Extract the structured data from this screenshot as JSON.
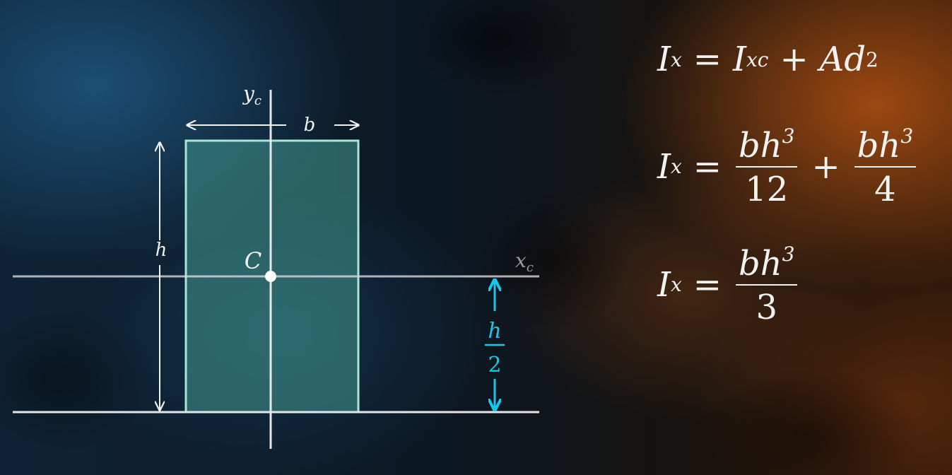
{
  "colors": {
    "rect_fill": "#3e8c86",
    "rect_stroke": "#a8e6d6",
    "axis": "#d8d8d8",
    "accent": "#18c8ec",
    "text": "#f2f2f2"
  },
  "diagram": {
    "width_label": "b",
    "height_label": "h",
    "centroid_label": "C",
    "y_axis_label": "y",
    "y_axis_sub": "c",
    "x_axis_label": "x",
    "x_axis_sub": "c",
    "offset_num": "h",
    "offset_den": "2"
  },
  "equations": {
    "eq1": {
      "lhs": "I",
      "lhs_sub": "x",
      "eq": "=",
      "t1": "I",
      "t1_sub": "xc",
      "plus": "+",
      "t2": "Ad",
      "t2_sup": "2"
    },
    "eq2": {
      "lhs": "I",
      "lhs_sub": "x",
      "eq": "=",
      "f1_num": "bh",
      "f1_sup": "3",
      "f1_den": "12",
      "plus": "+",
      "f2_num": "bh",
      "f2_sup": "3",
      "f2_den": "4"
    },
    "eq3": {
      "lhs": "I",
      "lhs_sub": "x",
      "eq": "=",
      "f_num": "bh",
      "f_sup": "3",
      "f_den": "3"
    }
  }
}
